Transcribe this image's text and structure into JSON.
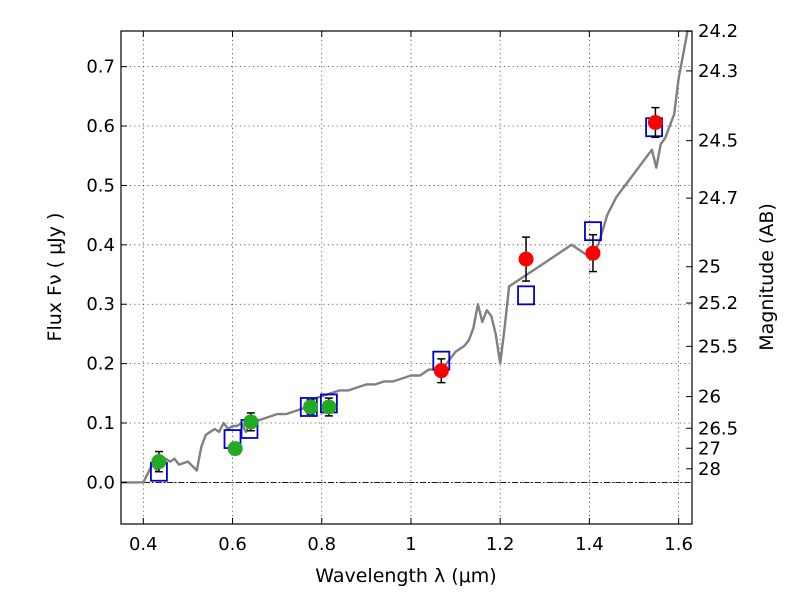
{
  "chart_data": {
    "type": "scatter",
    "title": "",
    "xlabel": "Wavelength  λ (μm)",
    "ylabel": "Flux  Fν  ( μJy )",
    "y2label": "Magnitude (AB)",
    "xlim": [
      0.35,
      1.63
    ],
    "ylim": [
      -0.07,
      0.76
    ],
    "xticks": [
      0.4,
      0.6,
      0.8,
      1.0,
      1.2,
      1.4,
      1.6
    ],
    "xtick_labels": [
      "0.4",
      "0.6",
      "0.8",
      "1",
      "1.2",
      "1.4",
      "1.6"
    ],
    "yticks": [
      0.0,
      0.1,
      0.2,
      0.3,
      0.4,
      0.5,
      0.6,
      0.7
    ],
    "ytick_labels": [
      "0.0",
      "0.1",
      "0.2",
      "0.3",
      "0.4",
      "0.5",
      "0.6",
      "0.7"
    ],
    "grid": true,
    "magnitude_ticks": [
      {
        "flux": 0.7596,
        "label": "24.2"
      },
      {
        "flux": 0.6928,
        "label": "24.3"
      },
      {
        "flux": 0.5754,
        "label": "24.5"
      },
      {
        "flux": 0.4786,
        "label": "24.7"
      },
      {
        "flux": 0.3631,
        "label": "25"
      },
      {
        "flux": 0.302,
        "label": "25.2"
      },
      {
        "flux": 0.2291,
        "label": "25.5"
      },
      {
        "flux": 0.1445,
        "label": "26"
      },
      {
        "flux": 0.0912,
        "label": "26.5"
      },
      {
        "flux": 0.0575,
        "label": "27"
      },
      {
        "flux": 0.0229,
        "label": "28"
      }
    ],
    "series": [
      {
        "style": "line",
        "color": "#808080",
        "x": [
          0.35,
          0.38,
          0.4,
          0.41,
          0.42,
          0.43,
          0.44,
          0.45,
          0.46,
          0.47,
          0.48,
          0.5,
          0.52,
          0.53,
          0.54,
          0.55,
          0.56,
          0.57,
          0.58,
          0.59,
          0.6,
          0.61,
          0.62,
          0.63,
          0.64,
          0.66,
          0.68,
          0.7,
          0.72,
          0.74,
          0.76,
          0.78,
          0.8,
          0.82,
          0.84,
          0.86,
          0.88,
          0.9,
          0.92,
          0.94,
          0.96,
          0.98,
          1.0,
          1.02,
          1.04,
          1.06,
          1.08,
          1.1,
          1.12,
          1.13,
          1.14,
          1.15,
          1.16,
          1.17,
          1.18,
          1.19,
          1.2,
          1.21,
          1.22,
          1.24,
          1.26,
          1.28,
          1.3,
          1.32,
          1.34,
          1.36,
          1.38,
          1.4,
          1.42,
          1.44,
          1.46,
          1.48,
          1.5,
          1.52,
          1.53,
          1.54,
          1.55,
          1.56,
          1.57,
          1.58,
          1.59,
          1.6,
          1.61,
          1.62
        ],
        "y": [
          0.0,
          0.0,
          0.0,
          0.015,
          0.03,
          0.02,
          0.035,
          0.04,
          0.035,
          0.04,
          0.03,
          0.035,
          0.02,
          0.06,
          0.08,
          0.085,
          0.09,
          0.085,
          0.1,
          0.09,
          0.095,
          0.095,
          0.1,
          0.085,
          0.1,
          0.105,
          0.11,
          0.115,
          0.115,
          0.12,
          0.125,
          0.14,
          0.145,
          0.15,
          0.155,
          0.155,
          0.16,
          0.165,
          0.165,
          0.17,
          0.17,
          0.175,
          0.18,
          0.18,
          0.19,
          0.19,
          0.2,
          0.22,
          0.23,
          0.24,
          0.26,
          0.3,
          0.27,
          0.29,
          0.28,
          0.25,
          0.2,
          0.26,
          0.33,
          0.34,
          0.35,
          0.36,
          0.37,
          0.38,
          0.39,
          0.4,
          0.39,
          0.38,
          0.4,
          0.45,
          0.48,
          0.5,
          0.52,
          0.54,
          0.55,
          0.56,
          0.53,
          0.57,
          0.58,
          0.6,
          0.62,
          0.68,
          0.72,
          0.76
        ]
      },
      {
        "style": "open-square",
        "color": "#0000cc",
        "x": [
          0.435,
          0.6,
          0.638,
          0.771,
          0.816,
          1.068,
          1.258,
          1.408,
          1.545
        ],
        "y": [
          0.018,
          0.073,
          0.09,
          0.127,
          0.133,
          0.205,
          0.315,
          0.423,
          0.598
        ]
      },
      {
        "style": "filled-circle",
        "color": "#22aa22",
        "x": [
          0.435,
          0.606,
          0.641,
          0.775,
          0.816
        ],
        "y": [
          0.035,
          0.057,
          0.102,
          0.127,
          0.127
        ],
        "yerr": [
          0.017,
          0.01,
          0.015,
          0.012,
          0.015
        ]
      },
      {
        "style": "filled-circle",
        "color": "#ff0000",
        "x": [
          1.068,
          1.258,
          1.408,
          1.548
        ],
        "y": [
          0.188,
          0.376,
          0.386,
          0.606
        ],
        "yerr": [
          0.02,
          0.037,
          0.031,
          0.025
        ]
      }
    ]
  }
}
